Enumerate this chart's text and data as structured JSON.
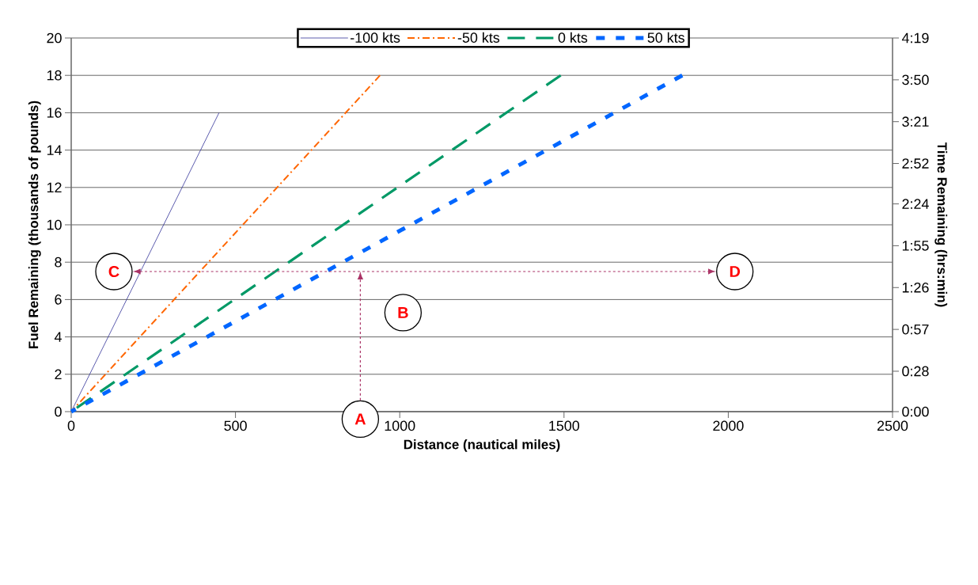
{
  "chart_data": {
    "type": "line",
    "xlabel": "Distance (nautical miles)",
    "ylabel": "Fuel Remaining (thousands of pounds)",
    "y2label": "Time Remaining (hrs:min)",
    "xlim": [
      0,
      2500
    ],
    "xticks": [
      0,
      500,
      1000,
      1500,
      2000,
      2500
    ],
    "ylim": [
      0,
      20
    ],
    "yticks": [
      0,
      2,
      4,
      6,
      8,
      10,
      12,
      14,
      16,
      18,
      20
    ],
    "y2lim": [
      0,
      4.3167
    ],
    "y2ticks": [
      {
        "value": 0,
        "label": "0:00"
      },
      {
        "value": 0.4667,
        "label": "0:28"
      },
      {
        "value": 0.95,
        "label": "0:57"
      },
      {
        "value": 1.4333,
        "label": "1:26"
      },
      {
        "value": 1.9167,
        "label": "1:55"
      },
      {
        "value": 2.4,
        "label": "2:24"
      },
      {
        "value": 2.8667,
        "label": "2:52"
      },
      {
        "value": 3.35,
        "label": "3:21"
      },
      {
        "value": 3.8333,
        "label": "3:50"
      },
      {
        "value": 4.3167,
        "label": "4:19"
      }
    ],
    "grid": "y",
    "legend": "top",
    "marker": "none",
    "series": [
      {
        "name": "-100 kts",
        "color": "#333399",
        "line_style": "solid",
        "x": [
          0,
          450
        ],
        "values": [
          0,
          16
        ]
      },
      {
        "name": "-50 kts",
        "color": "#ff6600",
        "line_style": "dashdot",
        "x": [
          0,
          940
        ],
        "values": [
          0,
          18
        ]
      },
      {
        "name": "0 kts",
        "color": "#009966",
        "line_style": "dashed",
        "x": [
          0,
          1490
        ],
        "values": [
          0,
          18
        ]
      },
      {
        "name": "50 kts",
        "color": "#0066ff",
        "line_style": "dotted",
        "x": [
          0,
          1860
        ],
        "values": [
          0,
          18
        ]
      }
    ],
    "annotations": [
      "A",
      "B",
      "C",
      "D"
    ]
  }
}
